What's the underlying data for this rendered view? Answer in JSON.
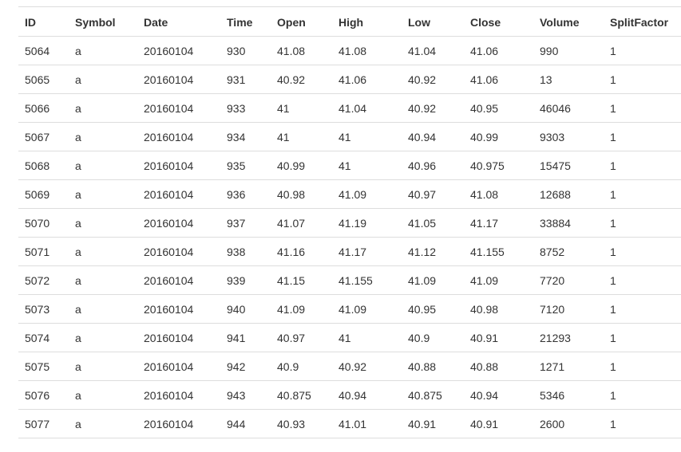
{
  "table": {
    "columns": [
      "ID",
      "Symbol",
      "Date",
      "Time",
      "Open",
      "High",
      "Low",
      "Close",
      "Volume",
      "SplitFactor"
    ],
    "rows": [
      [
        "5064",
        "a",
        "20160104",
        "930",
        "41.08",
        "41.08",
        "41.04",
        "41.06",
        "990",
        "1"
      ],
      [
        "5065",
        "a",
        "20160104",
        "931",
        "40.92",
        "41.06",
        "40.92",
        "41.06",
        "13",
        "1"
      ],
      [
        "5066",
        "a",
        "20160104",
        "933",
        "41",
        "41.04",
        "40.92",
        "40.95",
        "46046",
        "1"
      ],
      [
        "5067",
        "a",
        "20160104",
        "934",
        "41",
        "41",
        "40.94",
        "40.99",
        "9303",
        "1"
      ],
      [
        "5068",
        "a",
        "20160104",
        "935",
        "40.99",
        "41",
        "40.96",
        "40.975",
        "15475",
        "1"
      ],
      [
        "5069",
        "a",
        "20160104",
        "936",
        "40.98",
        "41.09",
        "40.97",
        "41.08",
        "12688",
        "1"
      ],
      [
        "5070",
        "a",
        "20160104",
        "937",
        "41.07",
        "41.19",
        "41.05",
        "41.17",
        "33884",
        "1"
      ],
      [
        "5071",
        "a",
        "20160104",
        "938",
        "41.16",
        "41.17",
        "41.12",
        "41.155",
        "8752",
        "1"
      ],
      [
        "5072",
        "a",
        "20160104",
        "939",
        "41.15",
        "41.155",
        "41.09",
        "41.09",
        "7720",
        "1"
      ],
      [
        "5073",
        "a",
        "20160104",
        "940",
        "41.09",
        "41.09",
        "40.95",
        "40.98",
        "7120",
        "1"
      ],
      [
        "5074",
        "a",
        "20160104",
        "941",
        "40.97",
        "41",
        "40.9",
        "40.91",
        "21293",
        "1"
      ],
      [
        "5075",
        "a",
        "20160104",
        "942",
        "40.9",
        "40.92",
        "40.88",
        "40.88",
        "1271",
        "1"
      ],
      [
        "5076",
        "a",
        "20160104",
        "943",
        "40.875",
        "40.94",
        "40.875",
        "40.94",
        "5346",
        "1"
      ],
      [
        "5077",
        "a",
        "20160104",
        "944",
        "40.93",
        "41.01",
        "40.91",
        "40.91",
        "2600",
        "1"
      ]
    ]
  }
}
